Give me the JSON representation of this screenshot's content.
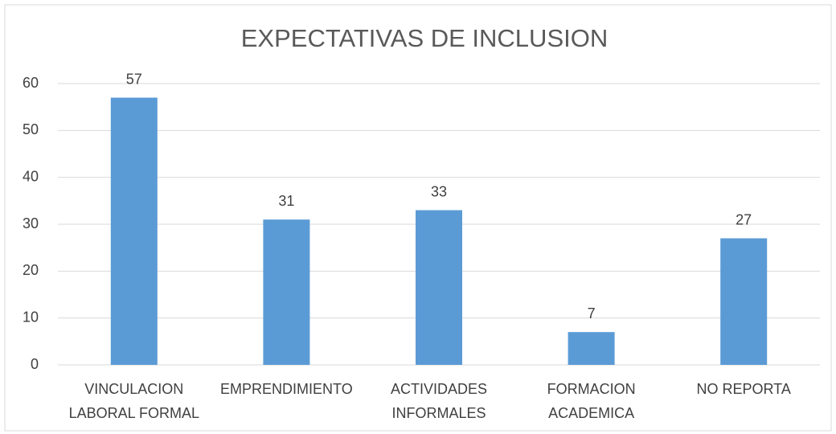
{
  "chart_data": {
    "type": "bar",
    "title": "EXPECTATIVAS DE INCLUSION",
    "categories": [
      "VINCULACION LABORAL FORMAL",
      "EMPRENDIMIENTO",
      "ACTIVIDADES INFORMALES",
      "FORMACION ACADEMICA",
      "NO REPORTA"
    ],
    "values": [
      57,
      31,
      33,
      7,
      27
    ],
    "color": "#5b9bd5",
    "ylim": [
      0,
      60
    ],
    "yticks": [
      0,
      10,
      20,
      30,
      40,
      50,
      60
    ],
    "grid": true
  }
}
